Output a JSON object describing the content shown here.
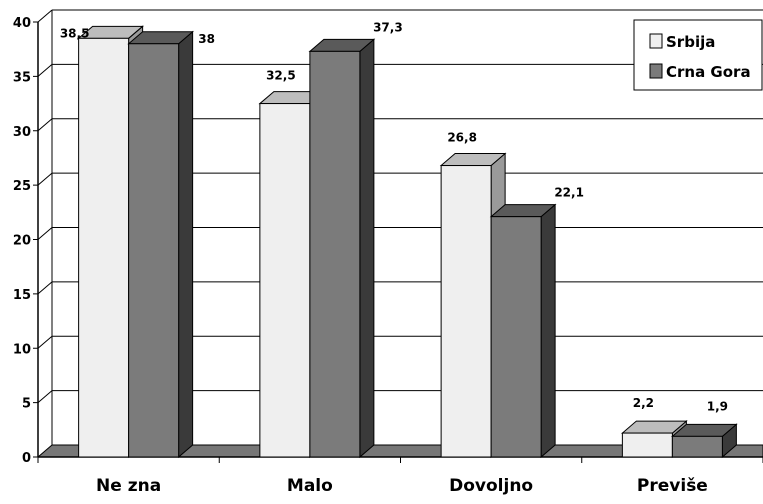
{
  "chart_data": {
    "type": "bar",
    "categories": [
      "Ne zna",
      "Malo",
      "Dovoljno",
      "Previše"
    ],
    "series": [
      {
        "name": "Srbija",
        "values": [
          38.5,
          32.5,
          26.8,
          2.2
        ],
        "labels": [
          "38,5",
          "32,5",
          "26,8",
          "2,2"
        ]
      },
      {
        "name": "Crna Gora",
        "values": [
          38,
          37.3,
          22.1,
          1.9
        ],
        "labels": [
          "38",
          "37,3",
          "22,1",
          "1,9"
        ]
      }
    ],
    "yticks": [
      "0",
      "5",
      "10",
      "15",
      "20",
      "25",
      "30",
      "35",
      "40"
    ],
    "ylim": [
      0,
      40
    ],
    "grid": true,
    "legend_position": "top-right",
    "style": "3d"
  },
  "colors": {
    "srbija_front": "#efefef",
    "srbija_top": "#bdbdbd",
    "srbija_side": "#9a9a9a",
    "crna_gora_front": "#7b7b7b",
    "crna_gora_top": "#5a5a5a",
    "crna_gora_side": "#3a3a3a",
    "floor": "#777777",
    "grid": "#000000"
  }
}
